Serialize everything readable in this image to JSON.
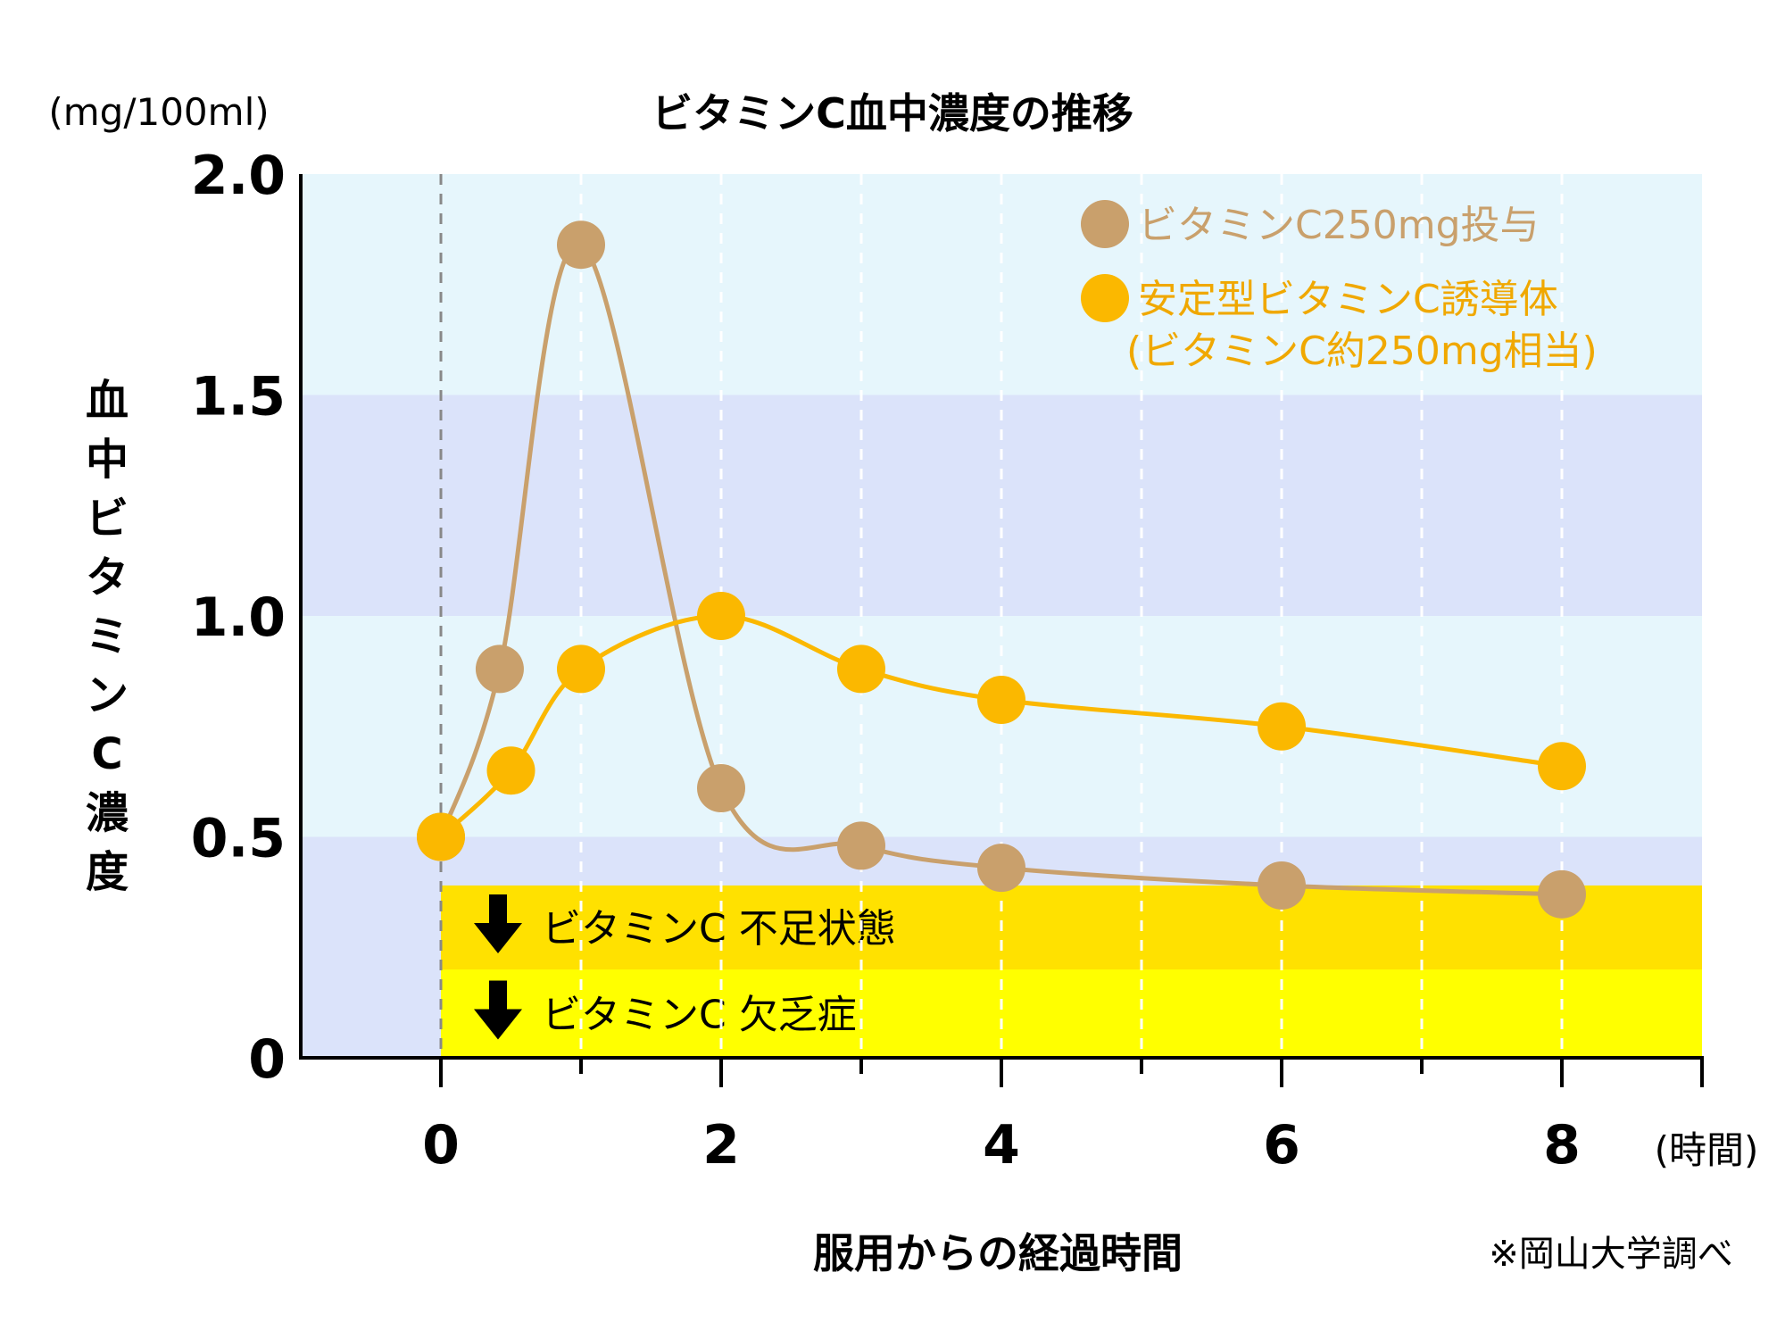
{
  "chart_data": {
    "type": "line",
    "title": "ビタミンC血中濃度の推移",
    "unit_label": "(mg/100ml)",
    "ylabel": "血中ビタミンC濃度",
    "xlabel": "服用からの経過時間",
    "x_unit": "(時間)",
    "source": "※岡山大学調べ",
    "xlim": [
      -1,
      9
    ],
    "ylim": [
      0,
      2.0
    ],
    "x_ticks": [
      0,
      2,
      4,
      6,
      8
    ],
    "x_tick_labels": [
      "0",
      "2",
      "4",
      "6",
      "8"
    ],
    "x_minor_ticks": [
      1,
      3,
      5,
      7
    ],
    "y_ticks": [
      0,
      0.5,
      1.0,
      1.5,
      2.0
    ],
    "y_tick_labels": [
      "0",
      "0.5",
      "1.0",
      "1.5",
      "2.0"
    ],
    "bands": [
      {
        "y0": 0.5,
        "y1": 1.0,
        "color": "#e6f6fc"
      },
      {
        "y0": 1.0,
        "y1": 1.5,
        "color": "#dbe3fa"
      },
      {
        "y0": 1.5,
        "y1": 2.0,
        "color": "#e6f6fc"
      },
      {
        "y0": 0.0,
        "y1": 0.5,
        "color": "#dbe3fa"
      }
    ],
    "zones": [
      {
        "label": "ビタミンC 不足状態",
        "y0": 0.2,
        "y1": 0.39,
        "x0": 0,
        "color": "#ffe100"
      },
      {
        "label": "ビタミンC 欠乏症",
        "y0": 0.0,
        "y1": 0.2,
        "x0": 0,
        "color": "#ffff00"
      }
    ],
    "series": [
      {
        "name": "ビタミンC250mg投与",
        "color": "#c9a06c",
        "x": [
          0,
          0.42,
          1,
          2,
          3,
          4,
          6,
          8
        ],
        "y": [
          0.5,
          0.88,
          1.84,
          0.61,
          0.48,
          0.43,
          0.39,
          0.37
        ]
      },
      {
        "name": "安定型ビタミンC誘導体",
        "name_line2": "(ビタミンC約250mg相当)",
        "color": "#fbb800",
        "x": [
          0,
          0.5,
          1,
          2,
          3,
          4,
          6,
          8
        ],
        "y": [
          0.5,
          0.65,
          0.88,
          1.0,
          0.88,
          0.81,
          0.75,
          0.66
        ]
      }
    ],
    "legend_position": "top-right",
    "grid": "dashed vertical"
  }
}
